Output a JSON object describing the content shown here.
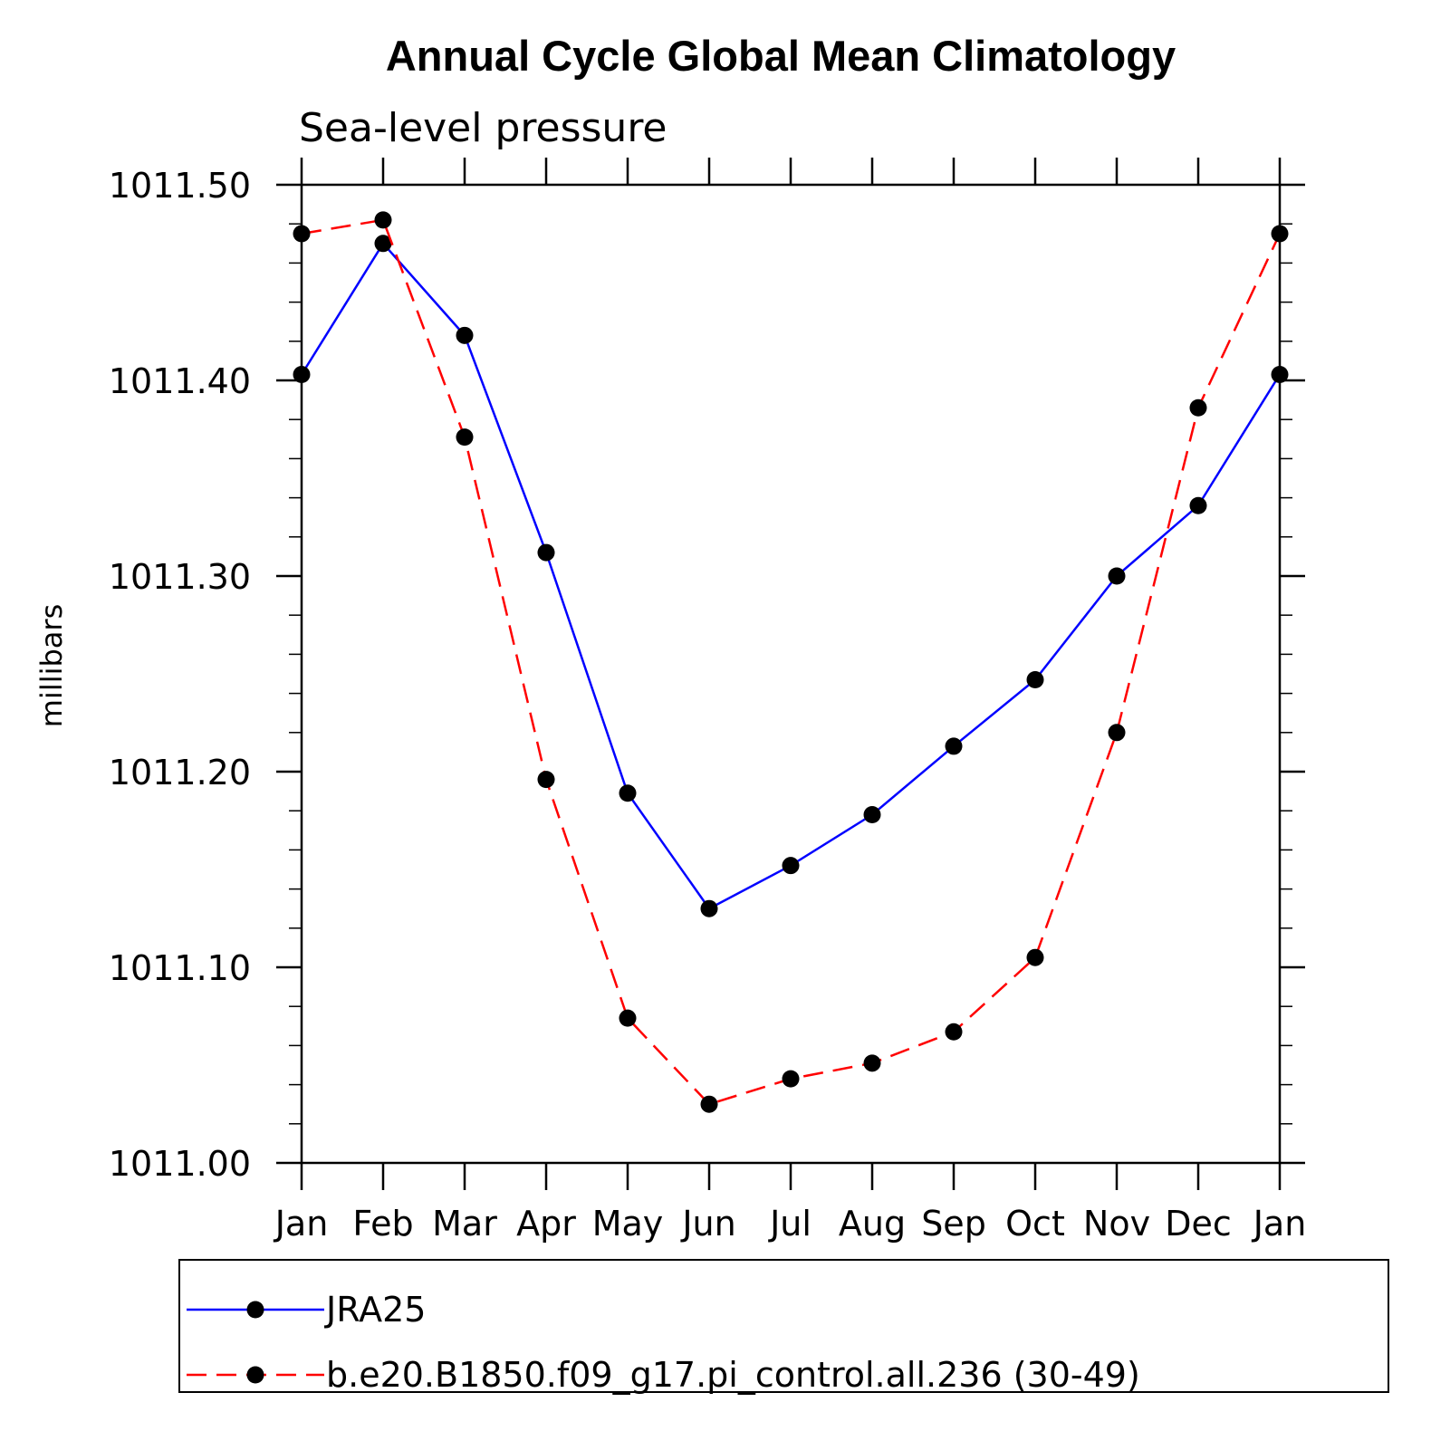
{
  "chart_data": {
    "type": "line",
    "title": "Annual Cycle Global Mean Climatology",
    "subtitle": "Sea-level pressure",
    "ylabel": "millibars",
    "ylim": [
      1011.0,
      1011.5
    ],
    "yticks": [
      "1011.00",
      "1011.10",
      "1011.20",
      "1011.30",
      "1011.40",
      "1011.50"
    ],
    "categories": [
      "Jan",
      "Feb",
      "Mar",
      "Apr",
      "May",
      "Jun",
      "Jul",
      "Aug",
      "Sep",
      "Oct",
      "Nov",
      "Dec",
      "Jan"
    ],
    "series": [
      {
        "name": "JRA25",
        "color": "#0000ff",
        "dash": "solid",
        "values": [
          1011.403,
          1011.47,
          1011.423,
          1011.312,
          1011.189,
          1011.13,
          1011.152,
          1011.178,
          1011.213,
          1011.247,
          1011.3,
          1011.336,
          1011.403
        ]
      },
      {
        "name": "b.e20.B1850.f09_g17.pi_control.all.236 (30-49)",
        "color": "#ff0000",
        "dash": "dashed",
        "values": [
          1011.475,
          1011.482,
          1011.371,
          1011.196,
          1011.074,
          1011.03,
          1011.043,
          1011.051,
          1011.067,
          1011.105,
          1011.22,
          1011.386,
          1011.475
        ]
      }
    ],
    "legend_position": "bottom"
  }
}
